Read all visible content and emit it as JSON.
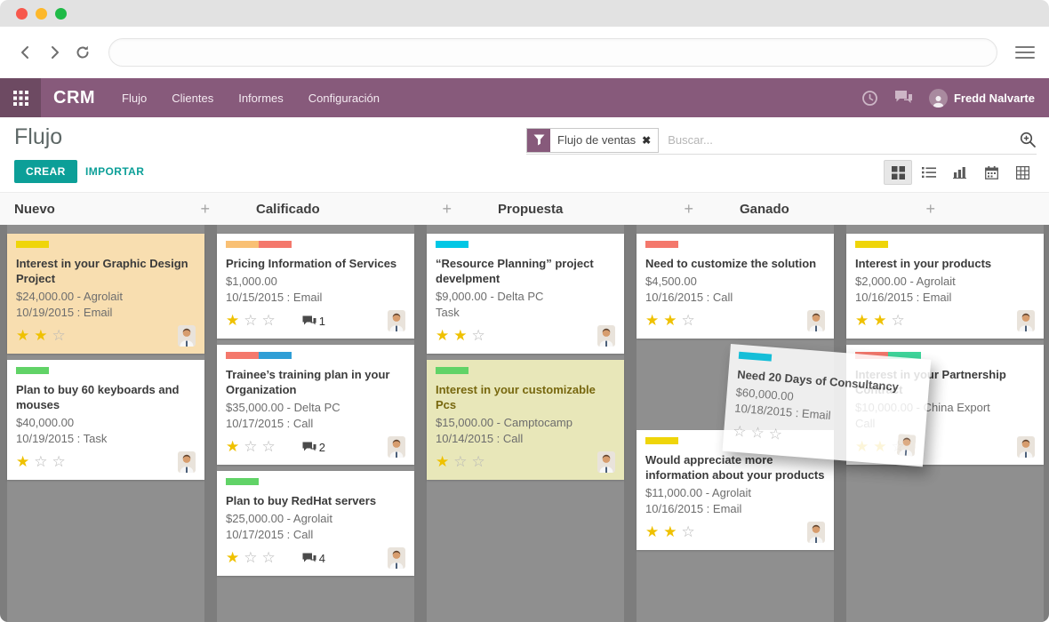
{
  "window_controls": {
    "close": "red",
    "minimize": "yellow",
    "zoom": "green"
  },
  "browser": {
    "url_value": "",
    "url_placeholder": ""
  },
  "navbar": {
    "app_name": "CRM",
    "menus": [
      "Flujo",
      "Clientes",
      "Informes",
      "Configuración"
    ],
    "user_name": "Fredd Nalvarte"
  },
  "control_panel": {
    "page_title": "Flujo",
    "create_label": "CREAR",
    "import_label": "IMPORTAR",
    "filter_chip_label": "Flujo de ventas",
    "filter_chip_remove": "✖",
    "search_placeholder": "Buscar..."
  },
  "view_switcher": [
    "kanban",
    "list",
    "graph",
    "calendar",
    "pivot"
  ],
  "icons": {
    "plus_glyph": "+",
    "star_filled_glyph": "★",
    "star_empty_glyph": "☆",
    "names": [
      "apps-grid-icon",
      "clock-icon",
      "chat-icon",
      "user-avatar-icon",
      "filter-funnel-icon",
      "zoom-in-search-icon",
      "kanban-view-icon",
      "list-view-icon",
      "graph-view-icon",
      "calendar-view-icon",
      "pivot-view-icon",
      "plus-icon",
      "comment-bubble-icon",
      "star-icon",
      "back-icon",
      "forward-icon",
      "reload-icon",
      "menu-icon",
      "avatar-photo"
    ]
  },
  "colors": {
    "navbar": "#875a7b",
    "accent": "#0c9f98",
    "bars": {
      "yellow": "#efd50a",
      "green": "#61d367",
      "orange": "#f9c074",
      "salmon": "#f4786c",
      "blue": "#2f9ed6",
      "cyan": "#00c7e5",
      "mint": "#3ed69b"
    },
    "card_peach": "#f8deb0",
    "card_khaki": "#e8e7b9",
    "khaki_title": "#77670e",
    "star_filled": "#efc100"
  },
  "board": {
    "columns": [
      {
        "title": "Nuevo",
        "cards": [
          {
            "title": "Interest in your Graphic Design Project",
            "amount": "$24,000.00 - Agrolait",
            "activity": "10/19/2015 : Email",
            "stars": 2,
            "bars": [
              "yellow"
            ],
            "bg": "peach"
          },
          {
            "title": "Plan to buy 60 keyboards and mouses",
            "amount": "$40,000.00",
            "activity": "10/19/2015 : Task",
            "stars": 1,
            "bars": [
              "green"
            ]
          }
        ]
      },
      {
        "title": "Calificado",
        "cards": [
          {
            "title": "Pricing Information of Services",
            "amount": "$1,000.00",
            "activity": "10/15/2015 : Email",
            "stars": 1,
            "bars": [
              "orange",
              "salmon"
            ],
            "comments": 1
          },
          {
            "title": "Trainee’s training plan in your Organization",
            "amount": "$35,000.00 - Delta PC",
            "activity": "10/17/2015 : Call",
            "stars": 1,
            "bars": [
              "salmon",
              "blue"
            ],
            "comments": 2
          },
          {
            "title": "Plan to buy RedHat servers",
            "amount": "$25,000.00 - Agrolait",
            "activity": "10/17/2015 : Call",
            "stars": 1,
            "bars": [
              "green"
            ],
            "comments": 4
          }
        ]
      },
      {
        "title": "Propuesta",
        "cards": [
          {
            "title": "“Resource Planning” project develpment",
            "amount": "$9,000.00 - Delta PC",
            "activity": "Task",
            "stars": 2,
            "bars": [
              "cyan"
            ]
          },
          {
            "title": "Interest in your customizable Pcs",
            "amount": "$15,000.00 - Camptocamp",
            "activity": "10/14/2015 : Call",
            "stars": 1,
            "bars": [
              "green"
            ],
            "bg": "khaki"
          }
        ]
      },
      {
        "title": "Ganado",
        "cards": [
          {
            "title": "Need to customize the solution",
            "amount": "$4,500.00",
            "activity": "10/16/2015 : Call",
            "stars": 2,
            "bars": [
              "salmon"
            ]
          },
          {
            "title": "Would appreciate more information about your products",
            "amount": "$11,000.00 - Agrolait",
            "activity": "10/16/2015 : Email",
            "stars": 2,
            "bars": [
              "yellow"
            ],
            "gap_before": true
          }
        ]
      },
      {
        "title": "",
        "cards": [
          {
            "title": "Interest in your products",
            "amount": "$2,000.00 - Agrolait",
            "activity": "10/16/2015 : Email",
            "stars": 2,
            "bars": [
              "yellow"
            ]
          },
          {
            "title": "Interest in your Partnership Contract",
            "amount": "$10,000.00 - China Export",
            "activity": "Call",
            "stars": 2,
            "bars": [
              "salmon",
              "mint"
            ]
          }
        ]
      }
    ]
  },
  "dragged_card": {
    "title": "Need 20 Days of Consultancy",
    "amount": "$60,000.00",
    "activity": "10/18/2015 : Email",
    "stars": 0,
    "bars": [
      "cyan"
    ]
  }
}
